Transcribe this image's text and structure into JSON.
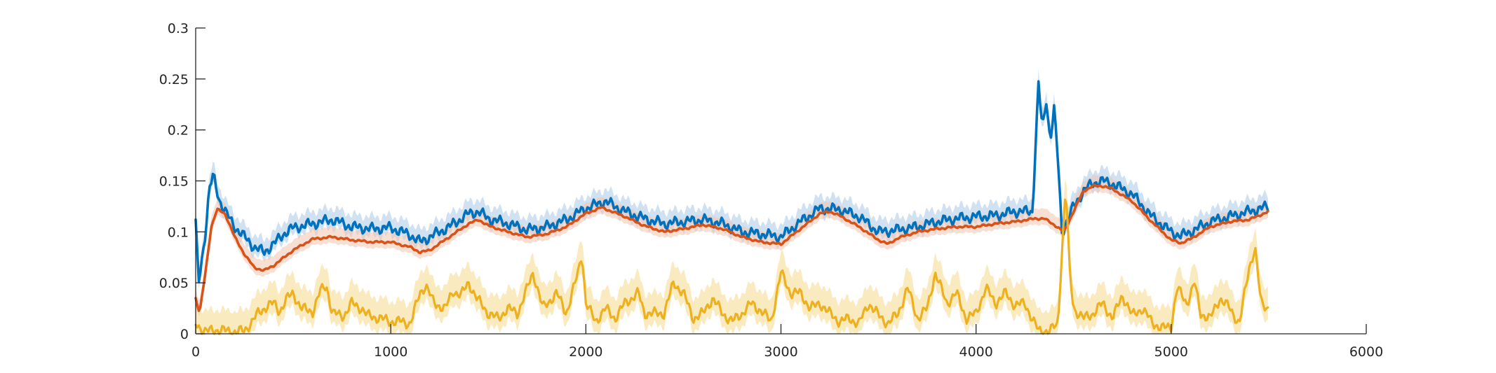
{
  "chart_data": {
    "type": "line",
    "title": "",
    "xlabel": "",
    "ylabel": "",
    "xlim": [
      0,
      6000
    ],
    "ylim": [
      0,
      0.3
    ],
    "x_ticks": [
      0,
      1000,
      2000,
      3000,
      4000,
      5000,
      6000
    ],
    "x_tick_labels": [
      "0",
      "1000",
      "2000",
      "3000",
      "4000",
      "5000",
      "6000"
    ],
    "y_ticks": [
      0,
      0.05,
      0.1,
      0.15,
      0.2,
      0.25,
      0.3
    ],
    "y_tick_labels": [
      "0",
      "0.05",
      "0.1",
      "0.15",
      "0.2",
      "0.25",
      "0.3"
    ],
    "grid": false,
    "legend": "none",
    "series": [
      {
        "color": "#0072BD",
        "band_color": "#A9C9E8",
        "points": [
          [
            0,
            0.108
          ],
          [
            15,
            0.05
          ],
          [
            30,
            0.07
          ],
          [
            50,
            0.1
          ],
          [
            70,
            0.142
          ],
          [
            90,
            0.155
          ],
          [
            120,
            0.132
          ],
          [
            160,
            0.117
          ],
          [
            200,
            0.105
          ],
          [
            250,
            0.095
          ],
          [
            300,
            0.085
          ],
          [
            350,
            0.08
          ],
          [
            400,
            0.088
          ],
          [
            450,
            0.098
          ],
          [
            500,
            0.104
          ],
          [
            600,
            0.108
          ],
          [
            700,
            0.112
          ],
          [
            800,
            0.105
          ],
          [
            900,
            0.103
          ],
          [
            1000,
            0.104
          ],
          [
            1100,
            0.097
          ],
          [
            1150,
            0.09
          ],
          [
            1200,
            0.095
          ],
          [
            1300,
            0.105
          ],
          [
            1400,
            0.118
          ],
          [
            1450,
            0.12
          ],
          [
            1500,
            0.113
          ],
          [
            1600,
            0.108
          ],
          [
            1700,
            0.102
          ],
          [
            1800,
            0.105
          ],
          [
            1900,
            0.112
          ],
          [
            2000,
            0.123
          ],
          [
            2100,
            0.13
          ],
          [
            2200,
            0.12
          ],
          [
            2300,
            0.113
          ],
          [
            2400,
            0.108
          ],
          [
            2500,
            0.11
          ],
          [
            2600,
            0.112
          ],
          [
            2700,
            0.108
          ],
          [
            2800,
            0.1
          ],
          [
            2900,
            0.098
          ],
          [
            3000,
            0.095
          ],
          [
            3100,
            0.11
          ],
          [
            3200,
            0.123
          ],
          [
            3300,
            0.122
          ],
          [
            3400,
            0.115
          ],
          [
            3500,
            0.1
          ],
          [
            3600,
            0.102
          ],
          [
            3700,
            0.105
          ],
          [
            3800,
            0.11
          ],
          [
            3900,
            0.113
          ],
          [
            4000,
            0.115
          ],
          [
            4100,
            0.116
          ],
          [
            4200,
            0.12
          ],
          [
            4290,
            0.12
          ],
          [
            4300,
            0.165
          ],
          [
            4320,
            0.245
          ],
          [
            4340,
            0.2
          ],
          [
            4360,
            0.23
          ],
          [
            4380,
            0.19
          ],
          [
            4400,
            0.22
          ],
          [
            4420,
            0.17
          ],
          [
            4440,
            0.1
          ],
          [
            4470,
            0.112
          ],
          [
            4500,
            0.125
          ],
          [
            4550,
            0.14
          ],
          [
            4600,
            0.148
          ],
          [
            4650,
            0.15
          ],
          [
            4700,
            0.147
          ],
          [
            4800,
            0.137
          ],
          [
            4900,
            0.115
          ],
          [
            5000,
            0.1
          ],
          [
            5050,
            0.096
          ],
          [
            5100,
            0.1
          ],
          [
            5200,
            0.11
          ],
          [
            5300,
            0.115
          ],
          [
            5400,
            0.12
          ],
          [
            5500,
            0.125
          ]
        ]
      },
      {
        "color": "#D95319",
        "band_color": "#F2C5B1",
        "points": [
          [
            0,
            0.035
          ],
          [
            20,
            0.02
          ],
          [
            50,
            0.06
          ],
          [
            80,
            0.105
          ],
          [
            110,
            0.122
          ],
          [
            150,
            0.118
          ],
          [
            200,
            0.095
          ],
          [
            250,
            0.078
          ],
          [
            300,
            0.065
          ],
          [
            350,
            0.062
          ],
          [
            400,
            0.067
          ],
          [
            500,
            0.082
          ],
          [
            600,
            0.093
          ],
          [
            700,
            0.095
          ],
          [
            800,
            0.092
          ],
          [
            900,
            0.09
          ],
          [
            1000,
            0.09
          ],
          [
            1100,
            0.085
          ],
          [
            1150,
            0.08
          ],
          [
            1200,
            0.082
          ],
          [
            1300,
            0.095
          ],
          [
            1400,
            0.108
          ],
          [
            1450,
            0.112
          ],
          [
            1500,
            0.106
          ],
          [
            1600,
            0.1
          ],
          [
            1700,
            0.095
          ],
          [
            1800,
            0.098
          ],
          [
            1900,
            0.105
          ],
          [
            2000,
            0.118
          ],
          [
            2080,
            0.124
          ],
          [
            2200,
            0.115
          ],
          [
            2300,
            0.106
          ],
          [
            2400,
            0.1
          ],
          [
            2500,
            0.103
          ],
          [
            2600,
            0.107
          ],
          [
            2700,
            0.103
          ],
          [
            2800,
            0.095
          ],
          [
            2900,
            0.09
          ],
          [
            3000,
            0.088
          ],
          [
            3100,
            0.103
          ],
          [
            3200,
            0.118
          ],
          [
            3250,
            0.12
          ],
          [
            3300,
            0.116
          ],
          [
            3400,
            0.105
          ],
          [
            3500,
            0.092
          ],
          [
            3550,
            0.088
          ],
          [
            3600,
            0.094
          ],
          [
            3700,
            0.1
          ],
          [
            3800,
            0.103
          ],
          [
            3900,
            0.105
          ],
          [
            4000,
            0.105
          ],
          [
            4100,
            0.108
          ],
          [
            4200,
            0.11
          ],
          [
            4300,
            0.113
          ],
          [
            4350,
            0.113
          ],
          [
            4400,
            0.107
          ],
          [
            4450,
            0.1
          ],
          [
            4500,
            0.12
          ],
          [
            4550,
            0.14
          ],
          [
            4600,
            0.145
          ],
          [
            4650,
            0.145
          ],
          [
            4700,
            0.142
          ],
          [
            4800,
            0.13
          ],
          [
            4900,
            0.11
          ],
          [
            5000,
            0.092
          ],
          [
            5050,
            0.089
          ],
          [
            5100,
            0.093
          ],
          [
            5200,
            0.105
          ],
          [
            5300,
            0.11
          ],
          [
            5400,
            0.112
          ],
          [
            5500,
            0.12
          ]
        ]
      },
      {
        "color": "#EDB120",
        "band_color": "#F6D98C",
        "points": [
          [
            0,
            0.01
          ],
          [
            50,
            0.002
          ],
          [
            100,
            0.004
          ],
          [
            200,
            0.002
          ],
          [
            250,
            0.003
          ],
          [
            280,
            0.01
          ],
          [
            320,
            0.02
          ],
          [
            370,
            0.028
          ],
          [
            400,
            0.03
          ],
          [
            430,
            0.022
          ],
          [
            470,
            0.035
          ],
          [
            500,
            0.04
          ],
          [
            540,
            0.025
          ],
          [
            600,
            0.022
          ],
          [
            640,
            0.042
          ],
          [
            670,
            0.048
          ],
          [
            700,
            0.02
          ],
          [
            760,
            0.018
          ],
          [
            800,
            0.03
          ],
          [
            850,
            0.025
          ],
          [
            880,
            0.018
          ],
          [
            950,
            0.015
          ],
          [
            1000,
            0.012
          ],
          [
            1050,
            0.012
          ],
          [
            1100,
            0.01
          ],
          [
            1150,
            0.04
          ],
          [
            1180,
            0.048
          ],
          [
            1220,
            0.03
          ],
          [
            1280,
            0.025
          ],
          [
            1320,
            0.042
          ],
          [
            1360,
            0.038
          ],
          [
            1400,
            0.05
          ],
          [
            1440,
            0.035
          ],
          [
            1500,
            0.02
          ],
          [
            1550,
            0.015
          ],
          [
            1600,
            0.025
          ],
          [
            1650,
            0.02
          ],
          [
            1700,
            0.045
          ],
          [
            1730,
            0.06
          ],
          [
            1780,
            0.025
          ],
          [
            1850,
            0.04
          ],
          [
            1900,
            0.02
          ],
          [
            1960,
            0.06
          ],
          [
            1980,
            0.08
          ],
          [
            2000,
            0.03
          ],
          [
            2050,
            0.012
          ],
          [
            2100,
            0.025
          ],
          [
            2150,
            0.015
          ],
          [
            2200,
            0.03
          ],
          [
            2270,
            0.04
          ],
          [
            2300,
            0.02
          ],
          [
            2400,
            0.02
          ],
          [
            2450,
            0.05
          ],
          [
            2500,
            0.04
          ],
          [
            2550,
            0.015
          ],
          [
            2600,
            0.02
          ],
          [
            2650,
            0.035
          ],
          [
            2700,
            0.02
          ],
          [
            2750,
            0.012
          ],
          [
            2800,
            0.02
          ],
          [
            2850,
            0.03
          ],
          [
            2900,
            0.022
          ],
          [
            2950,
            0.012
          ],
          [
            3000,
            0.06
          ],
          [
            3050,
            0.04
          ],
          [
            3100,
            0.04
          ],
          [
            3150,
            0.025
          ],
          [
            3200,
            0.03
          ],
          [
            3250,
            0.02
          ],
          [
            3300,
            0.012
          ],
          [
            3350,
            0.015
          ],
          [
            3400,
            0.01
          ],
          [
            3450,
            0.03
          ],
          [
            3500,
            0.018
          ],
          [
            3550,
            0.01
          ],
          [
            3600,
            0.02
          ],
          [
            3650,
            0.045
          ],
          [
            3700,
            0.015
          ],
          [
            3750,
            0.025
          ],
          [
            3790,
            0.06
          ],
          [
            3850,
            0.03
          ],
          [
            3900,
            0.04
          ],
          [
            3950,
            0.015
          ],
          [
            4000,
            0.02
          ],
          [
            4050,
            0.045
          ],
          [
            4100,
            0.03
          ],
          [
            4150,
            0.04
          ],
          [
            4200,
            0.028
          ],
          [
            4250,
            0.03
          ],
          [
            4300,
            0.01
          ],
          [
            4320,
            0.003
          ],
          [
            4380,
            0.003
          ],
          [
            4420,
            0.01
          ],
          [
            4440,
            0.08
          ],
          [
            4460,
            0.145
          ],
          [
            4480,
            0.06
          ],
          [
            4500,
            0.025
          ],
          [
            4550,
            0.015
          ],
          [
            4600,
            0.02
          ],
          [
            4650,
            0.03
          ],
          [
            4700,
            0.015
          ],
          [
            4750,
            0.038
          ],
          [
            4800,
            0.018
          ],
          [
            4850,
            0.025
          ],
          [
            4900,
            0.012
          ],
          [
            4950,
            0.005
          ],
          [
            5000,
            0.008
          ],
          [
            5030,
            0.045
          ],
          [
            5080,
            0.03
          ],
          [
            5120,
            0.05
          ],
          [
            5150,
            0.02
          ],
          [
            5200,
            0.015
          ],
          [
            5250,
            0.035
          ],
          [
            5300,
            0.025
          ],
          [
            5350,
            0.01
          ],
          [
            5400,
            0.065
          ],
          [
            5430,
            0.085
          ],
          [
            5460,
            0.03
          ],
          [
            5500,
            0.025
          ]
        ]
      }
    ]
  }
}
